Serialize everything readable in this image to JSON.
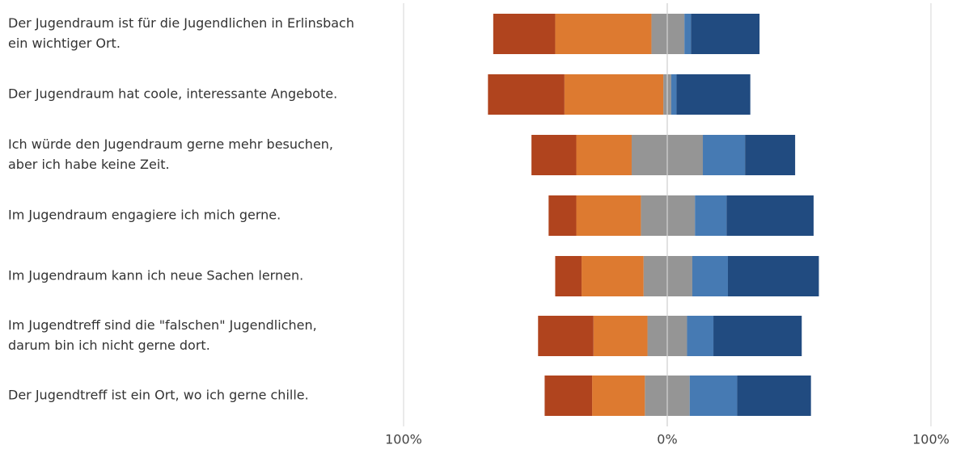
{
  "chart_data": {
    "type": "bar",
    "orientation": "horizontal",
    "stacked": "diverging",
    "title": "",
    "xlabel": "",
    "ylabel": "",
    "xlim": [
      -100,
      100
    ],
    "x_ticks": [
      {
        "value": -100,
        "label": "100%"
      },
      {
        "value": 0,
        "label": "0%"
      },
      {
        "value": 100,
        "label": "100%"
      }
    ],
    "grid": true,
    "legend": "none",
    "categories": [
      [
        "Der Jugendraum ist für die Jugendlichen in Erlinsbach",
        "ein wichtiger Ort."
      ],
      [
        "Der Jugendraum hat coole, interessante Angebote."
      ],
      [
        "Ich würde den Jugendraum gerne mehr besuchen,",
        "aber ich habe keine Zeit."
      ],
      [
        "Im Jugendraum engagiere ich mich gerne."
      ],
      [
        "Im Jugendraum kann ich neue Sachen lernen."
      ],
      [
        "Im Jugendtreff sind die \"falschen\" Jugendlichen,",
        "darum bin ich nicht gerne dort."
      ],
      [
        "Der Jugendtreff ist ein Ort, wo ich gerne chille."
      ]
    ],
    "series": [
      {
        "color": "#b0441e",
        "values": [
          23.5,
          29.0,
          17.0,
          10.5,
          10.0,
          21.0,
          18.0
        ]
      },
      {
        "color": "#dd7a30",
        "values": [
          36.5,
          37.5,
          21.0,
          24.5,
          23.5,
          20.5,
          20.0
        ]
      },
      {
        "color": "#959595",
        "values": [
          6.0,
          1.5,
          13.5,
          10.0,
          9.0,
          7.5,
          8.5
        ]
      },
      {
        "color": "#959595",
        "values": [
          6.5,
          1.5,
          13.5,
          10.5,
          9.5,
          7.5,
          8.5
        ]
      },
      {
        "color": "#467ab3",
        "values": [
          2.5,
          2.0,
          16.0,
          12.0,
          13.5,
          10.0,
          18.0
        ]
      },
      {
        "color": "#214b80",
        "values": [
          26.0,
          28.0,
          19.0,
          33.0,
          34.5,
          33.5,
          28.0
        ]
      }
    ]
  }
}
